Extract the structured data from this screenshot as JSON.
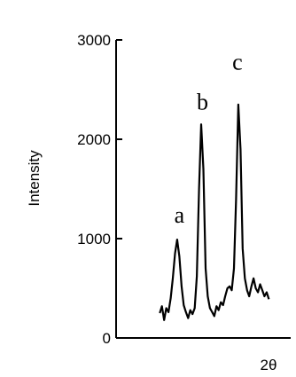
{
  "chart_data": {
    "type": "line",
    "title": "",
    "xlabel": "2θ",
    "ylabel": "Intensity",
    "ylim": [
      0,
      3000
    ],
    "yticks": [
      0,
      1000,
      2000,
      3000
    ],
    "xlim": [
      0,
      40
    ],
    "x_ticks_shown": false,
    "grid": false,
    "legend": "none",
    "series": [
      {
        "x": [
          10,
          10.5,
          11,
          11.5,
          12,
          12.5,
          13,
          13.5,
          14,
          14.5,
          15,
          15.5,
          16,
          16.5,
          17,
          17.5,
          18,
          18.5,
          19,
          19.5,
          20,
          20.5,
          21,
          21.5,
          22,
          22.5,
          23,
          23.5,
          24,
          24.5,
          25,
          25.5,
          26,
          26.5,
          27,
          27.5,
          28,
          28.5,
          29,
          29.5,
          30,
          30.5,
          31,
          31.5,
          32,
          32.5,
          33,
          33.5,
          34,
          34.5,
          35
        ],
        "y": [
          250,
          320,
          180,
          300,
          260,
          400,
          600,
          850,
          990,
          820,
          520,
          330,
          260,
          200,
          280,
          240,
          300,
          620,
          1500,
          2150,
          1700,
          700,
          420,
          300,
          260,
          220,
          320,
          280,
          360,
          330,
          420,
          500,
          520,
          480,
          700,
          1400,
          2350,
          1900,
          900,
          600,
          480,
          420,
          520,
          600,
          500,
          460,
          540,
          480,
          420,
          460,
          390
        ]
      }
    ],
    "annotations": [
      {
        "text": "a",
        "x": 14.5,
        "y": 1160
      },
      {
        "text": "b",
        "x": 19.8,
        "y": 2300
      },
      {
        "text": "c",
        "x": 27.8,
        "y": 2700
      }
    ]
  }
}
